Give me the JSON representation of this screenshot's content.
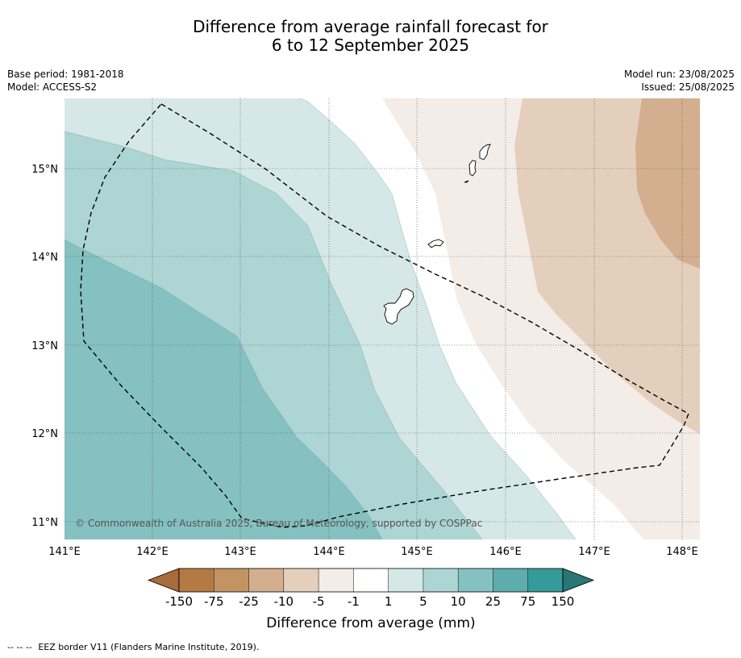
{
  "header": {
    "title_line1": "Difference from average rainfall forecast for",
    "title_line2": "6 to 12 September 2025",
    "base_period": "Base period: 1981-2018",
    "model": "Model: ACCESS-S2",
    "model_run": "Model run: 23/08/2025",
    "issued": "Issued: 25/08/2025"
  },
  "map": {
    "lon_ticks": [
      "141°E",
      "142°E",
      "143°E",
      "144°E",
      "145°E",
      "146°E",
      "147°E",
      "148°E"
    ],
    "lat_ticks": [
      "15°N",
      "14°N",
      "13°N",
      "12°N",
      "11°N"
    ],
    "copyright": "© Commonwealth of Australia 2025, Bureau of Meteorology, supported by COSPPac",
    "colors": {
      "z10_25": "#85c1c0",
      "z5_10": "#acd5d4",
      "z1_5": "#d5e8e7",
      "zm1_1": "#ffffff",
      "zm5_m1": "#f4ece6",
      "zm10_m5": "#e4cfbd",
      "zm25_m10": "#d3af8f"
    }
  },
  "legend": {
    "colors": [
      "#a86b3a",
      "#b47a43",
      "#c29463",
      "#d3af8f",
      "#e4cfbd",
      "#f4ece6",
      "#ffffff",
      "#d5e8e7",
      "#acd5d4",
      "#85c1c0",
      "#5eadac",
      "#359b98",
      "#2a7674"
    ],
    "tick_labels": [
      "-150",
      "-75",
      "-25",
      "-10",
      "-5",
      "-1",
      "1",
      "5",
      "10",
      "25",
      "75",
      "150"
    ],
    "label": "Difference from average (mm)"
  },
  "footer": {
    "eez_dash": "--  --  --",
    "eez_note": "EEZ border V11 (Flanders Marine Institute, 2019)."
  }
}
